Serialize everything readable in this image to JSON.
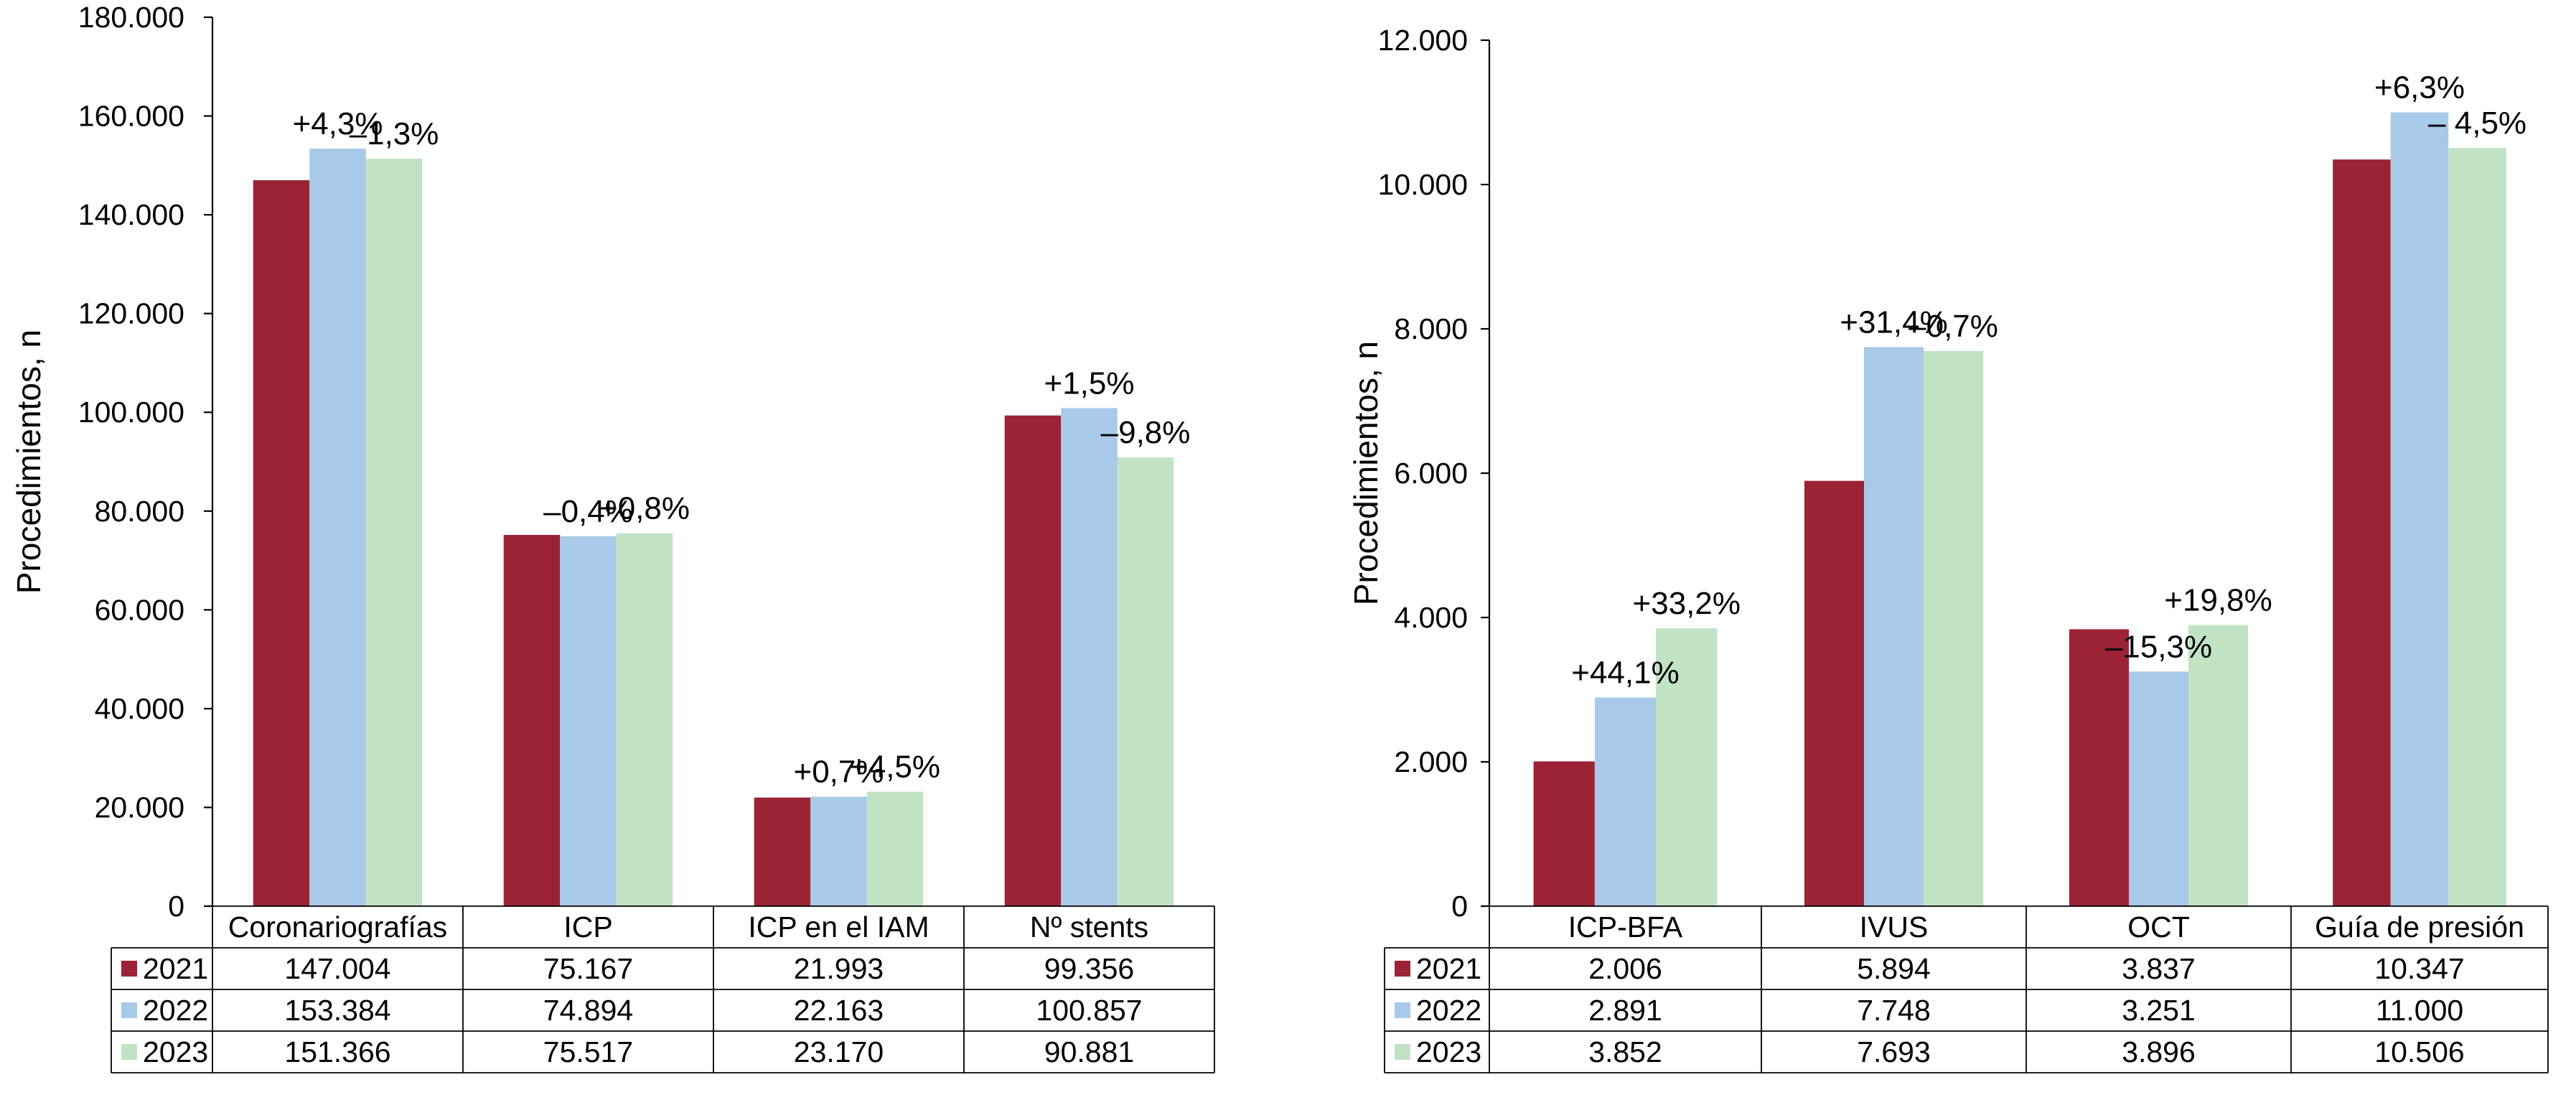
{
  "chart_data": [
    {
      "type": "bar",
      "ylabel": "Procedimientos, n",
      "ylim": [
        0,
        180000
      ],
      "yticks": [
        "0",
        "20.000",
        "40.000",
        "60.000",
        "80.000",
        "100.000",
        "120.000",
        "140.000",
        "160.000",
        "180.000"
      ],
      "categories": [
        "Coronariografías",
        "ICP",
        "ICP en el IAM",
        "Nº stents"
      ],
      "series": [
        {
          "name": "2021",
          "color": "#9b2335",
          "values": [
            147004,
            75167,
            21993,
            99356
          ],
          "labels": [
            "147.004",
            "75.167",
            "21.993",
            "99.356"
          ]
        },
        {
          "name": "2022",
          "color": "#a9c9e8",
          "values": [
            153384,
            74894,
            22163,
            100857
          ],
          "labels": [
            "153.384",
            "74.894",
            "22.163",
            "100.857"
          ]
        },
        {
          "name": "2023",
          "color": "#c2e3c3",
          "values": [
            151366,
            75517,
            23170,
            90881
          ],
          "labels": [
            "151.366",
            "75.517",
            "23.170",
            "90.881"
          ]
        }
      ],
      "annotations": [
        [
          "+4,3%",
          "–1,3%"
        ],
        [
          "–0,4%",
          "+0,8%"
        ],
        [
          "+0,7%",
          "+4,5%"
        ],
        [
          "+1,5%",
          "–9,8%"
        ]
      ],
      "grid": false,
      "legend": "table-below"
    },
    {
      "type": "bar",
      "ylabel": "Procedimientos, n",
      "ylim": [
        0,
        12000
      ],
      "yticks": [
        "0",
        "2.000",
        "4.000",
        "6.000",
        "8.000",
        "10.000",
        "12.000"
      ],
      "categories": [
        "ICP-BFA",
        "IVUS",
        "OCT",
        "Guía de presión"
      ],
      "series": [
        {
          "name": "2021",
          "color": "#9b2335",
          "values": [
            2006,
            5894,
            3837,
            10347
          ],
          "labels": [
            "2.006",
            "5.894",
            "3.837",
            "10.347"
          ]
        },
        {
          "name": "2022",
          "color": "#a9c9e8",
          "values": [
            2891,
            7748,
            3251,
            11000
          ],
          "labels": [
            "2.891",
            "7.748",
            "3.251",
            "11.000"
          ]
        },
        {
          "name": "2023",
          "color": "#c2e3c3",
          "values": [
            3852,
            7693,
            3896,
            10506
          ],
          "labels": [
            "3.852",
            "7.693",
            "3.896",
            "10.506"
          ]
        }
      ],
      "annotations": [
        [
          "+44,1%",
          "+33,2%"
        ],
        [
          "+31,4%",
          "–0,7%"
        ],
        [
          "–15,3%",
          "+19,8%"
        ],
        [
          "+6,3%",
          "– 4,5%"
        ]
      ],
      "grid": false,
      "legend": "table-below"
    }
  ]
}
